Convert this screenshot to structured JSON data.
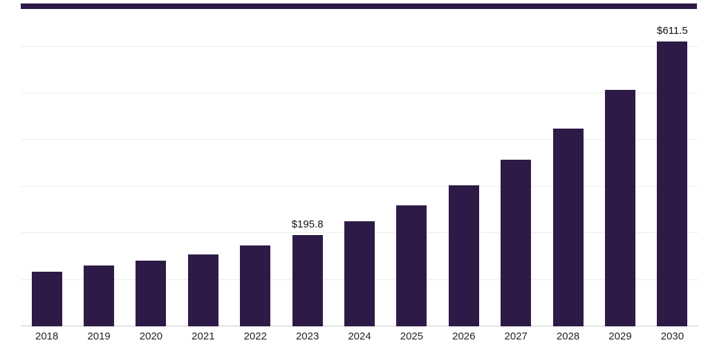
{
  "page": {
    "background": "#ffffff"
  },
  "top_bar": {
    "color": "#2e1a47"
  },
  "chart_data": {
    "type": "bar",
    "title": "",
    "xlabel": "",
    "ylabel": "",
    "legend": "none",
    "grid": true,
    "gridline_values": [
      0,
      100,
      200,
      300,
      400,
      500,
      600
    ],
    "ylim": [
      0,
      650
    ],
    "bar_color": "#2e1a47",
    "categories": [
      "2018",
      "2019",
      "2020",
      "2021",
      "2022",
      "2023",
      "2024",
      "2025",
      "2026",
      "2027",
      "2028",
      "2029",
      "2030"
    ],
    "values": [
      117,
      130,
      141,
      155,
      173,
      195.8,
      225,
      260,
      303,
      358,
      425,
      508,
      611.5
    ],
    "annotations": [
      "",
      "",
      "",
      "",
      "",
      "$195.8",
      "",
      "",
      "",
      "",
      "",
      "",
      "$611.5"
    ]
  }
}
